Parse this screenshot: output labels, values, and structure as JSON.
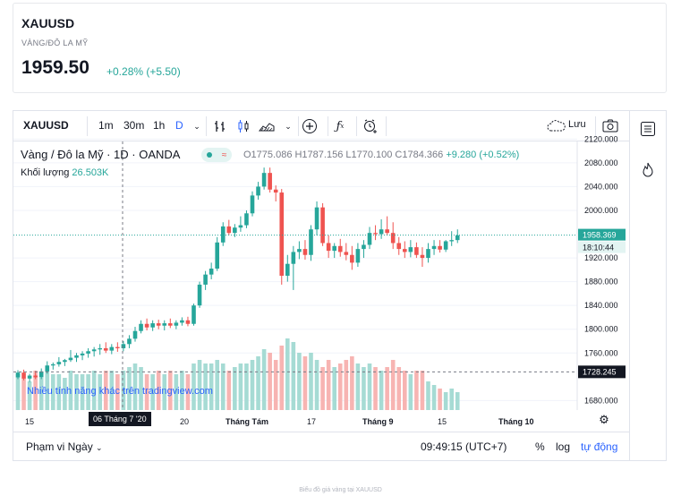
{
  "quote": {
    "symbol": "XAUUSD",
    "name": "VÀNG/ĐÔ LA MỸ",
    "price": "1959.50",
    "change": "+0.28% (+5.50)"
  },
  "toolbar": {
    "symbol": "XAUUSD",
    "intervals": [
      "1m",
      "30m",
      "1h",
      "D"
    ],
    "save_label": "Lưu"
  },
  "legend": {
    "title": "Vàng / Đô la Mỹ · 1D · OANDA",
    "ohlc_prefix": "O1775.086 H1787.156 L1770.100 C1784.366",
    "ohlc_change": "+9.280 (+0.52%)",
    "volume_label": "Khối lượng",
    "volume_value": "26.503K"
  },
  "promo": "Nhiều tính năng khác trên tradingview.com",
  "y_axis": {
    "labels": [
      "2120.000",
      "2080.000",
      "2040.000",
      "2000.000",
      "1958.369",
      "1920.000",
      "1880.000",
      "1840.000",
      "1800.000",
      "1760.000",
      "1728.245",
      "1680.000"
    ],
    "price_badge": "1958.369",
    "countdown": "18:10:44",
    "crosshair_price": "1728.245"
  },
  "x_axis": {
    "labels": [
      "15",
      "20",
      "Tháng Tám",
      "17",
      "Tháng 9",
      "15",
      "Tháng 10"
    ],
    "crosshair_date": "06 Tháng 7 '20"
  },
  "bottom": {
    "range_label": "Phạm vi Ngày",
    "time": "09:49:15 (UTC+7)",
    "percent": "%",
    "log": "log",
    "auto": "tự động"
  },
  "footer": "Biểu đồ giá vàng tại XAUUSD",
  "colors": {
    "up": "#26a69a",
    "down": "#ef5350",
    "accent": "#2962ff"
  },
  "chart_data": {
    "type": "candlestick",
    "ylim": [
      1670,
      2125
    ],
    "candles": [
      [
        1719,
        1731,
        1716,
        1727
      ],
      [
        1727,
        1732,
        1714,
        1717
      ],
      [
        1717,
        1725,
        1711,
        1722
      ],
      [
        1722,
        1730,
        1716,
        1719
      ],
      [
        1719,
        1734,
        1716,
        1729
      ],
      [
        1729,
        1746,
        1725,
        1739
      ],
      [
        1739,
        1744,
        1732,
        1741
      ],
      [
        1741,
        1753,
        1737,
        1745
      ],
      [
        1745,
        1750,
        1738,
        1748
      ],
      [
        1748,
        1765,
        1745,
        1752
      ],
      [
        1752,
        1760,
        1745,
        1756
      ],
      [
        1756,
        1763,
        1748,
        1759
      ],
      [
        1759,
        1768,
        1752,
        1763
      ],
      [
        1763,
        1770,
        1754,
        1766
      ],
      [
        1766,
        1775,
        1757,
        1768
      ],
      [
        1768,
        1778,
        1760,
        1764
      ],
      [
        1764,
        1775,
        1758,
        1770
      ],
      [
        1770,
        1778,
        1762,
        1768
      ],
      [
        1768,
        1780,
        1763,
        1775
      ],
      [
        1775,
        1790,
        1768,
        1784
      ],
      [
        1784,
        1804,
        1779,
        1797
      ],
      [
        1797,
        1815,
        1793,
        1809
      ],
      [
        1809,
        1818,
        1798,
        1803
      ],
      [
        1803,
        1815,
        1797,
        1810
      ],
      [
        1810,
        1816,
        1800,
        1806
      ],
      [
        1806,
        1815,
        1798,
        1810
      ],
      [
        1810,
        1818,
        1802,
        1806
      ],
      [
        1806,
        1815,
        1800,
        1811
      ],
      [
        1811,
        1820,
        1806,
        1815
      ],
      [
        1815,
        1821,
        1805,
        1809
      ],
      [
        1809,
        1843,
        1806,
        1840
      ],
      [
        1840,
        1880,
        1836,
        1875
      ],
      [
        1875,
        1898,
        1866,
        1892
      ],
      [
        1892,
        1912,
        1884,
        1902
      ],
      [
        1902,
        1955,
        1898,
        1946
      ],
      [
        1946,
        1980,
        1940,
        1973
      ],
      [
        1973,
        1984,
        1958,
        1962
      ],
      [
        1962,
        1977,
        1955,
        1971
      ],
      [
        1971,
        1990,
        1964,
        1975
      ],
      [
        1975,
        2000,
        1970,
        1995
      ],
      [
        1995,
        2032,
        1990,
        2025
      ],
      [
        2025,
        2048,
        2018,
        2040
      ],
      [
        2040,
        2072,
        2035,
        2063
      ],
      [
        2063,
        2072,
        2030,
        2035
      ],
      [
        2035,
        2042,
        2015,
        2030
      ],
      [
        2030,
        2036,
        1875,
        1890
      ],
      [
        1890,
        1925,
        1880,
        1910
      ],
      [
        1910,
        1940,
        1866,
        1930
      ],
      [
        1930,
        1948,
        1918,
        1935
      ],
      [
        1935,
        1950,
        1917,
        1925
      ],
      [
        1925,
        1975,
        1915,
        1968
      ],
      [
        1968,
        2015,
        1958,
        2005
      ],
      [
        2005,
        2012,
        1940,
        1945
      ],
      [
        1945,
        1958,
        1920,
        1932
      ],
      [
        1932,
        1945,
        1920,
        1940
      ],
      [
        1940,
        1952,
        1922,
        1930
      ],
      [
        1930,
        1945,
        1916,
        1925
      ],
      [
        1925,
        1940,
        1900,
        1912
      ],
      [
        1912,
        1945,
        1905,
        1935
      ],
      [
        1935,
        1950,
        1920,
        1942
      ],
      [
        1942,
        1972,
        1935,
        1962
      ],
      [
        1962,
        1975,
        1950,
        1960
      ],
      [
        1960,
        1985,
        1952,
        1968
      ],
      [
        1968,
        1990,
        1958,
        1962
      ],
      [
        1962,
        1980,
        1935,
        1945
      ],
      [
        1945,
        1955,
        1925,
        1935
      ],
      [
        1935,
        1948,
        1920,
        1930
      ],
      [
        1930,
        1950,
        1921,
        1938
      ],
      [
        1938,
        1946,
        1920,
        1925
      ],
      [
        1925,
        1938,
        1905,
        1920
      ],
      [
        1920,
        1945,
        1912,
        1935
      ],
      [
        1935,
        1950,
        1925,
        1940
      ],
      [
        1940,
        1950,
        1929,
        1934
      ],
      [
        1934,
        1950,
        1930,
        1948
      ],
      [
        1948,
        1965,
        1940,
        1950
      ],
      [
        1950,
        1968,
        1945,
        1958
      ]
    ],
    "volume": [
      0.5,
      0.45,
      0.4,
      0.55,
      0.45,
      0.55,
      0.5,
      0.5,
      0.45,
      0.55,
      0.5,
      0.5,
      0.5,
      0.55,
      0.5,
      0.55,
      0.55,
      0.5,
      0.55,
      0.6,
      0.65,
      0.6,
      0.5,
      0.5,
      0.55,
      0.5,
      0.55,
      0.5,
      0.55,
      0.5,
      0.65,
      0.7,
      0.65,
      0.65,
      0.7,
      0.65,
      0.55,
      0.6,
      0.65,
      0.65,
      0.7,
      0.75,
      0.85,
      0.8,
      0.7,
      0.9,
      1.0,
      0.95,
      0.8,
      0.75,
      0.8,
      0.7,
      0.6,
      0.7,
      0.6,
      0.65,
      0.7,
      0.75,
      0.65,
      0.6,
      0.65,
      0.6,
      0.55,
      0.6,
      0.7,
      0.6,
      0.55,
      0.5,
      0.55,
      0.55,
      0.4,
      0.35,
      0.3,
      0.25,
      0.3,
      0.25
    ]
  }
}
